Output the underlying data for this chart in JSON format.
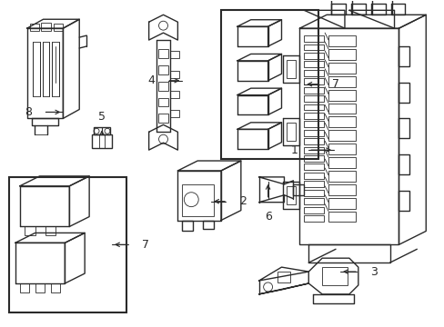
{
  "background_color": "#ffffff",
  "line_color": "#2a2a2a",
  "lw": 1.0,
  "tlw": 0.6
}
